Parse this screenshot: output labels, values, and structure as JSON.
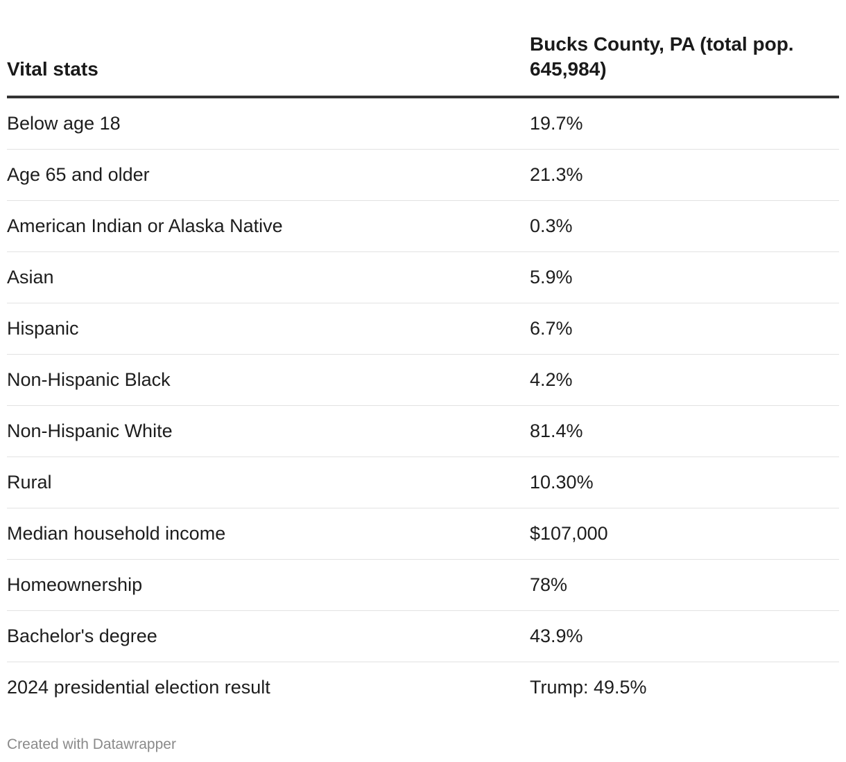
{
  "chart_data": {
    "type": "table",
    "columns": [
      "Vital stats",
      "Bucks County, PA (total pop. 645,984)"
    ],
    "rows": [
      [
        "Below age 18",
        "19.7%"
      ],
      [
        "Age 65 and older",
        "21.3%"
      ],
      [
        "American Indian or Alaska Native",
        "0.3%"
      ],
      [
        "Asian",
        "5.9%"
      ],
      [
        "Hispanic",
        "6.7%"
      ],
      [
        "Non-Hispanic Black",
        "4.2%"
      ],
      [
        "Non-Hispanic White",
        "81.4%"
      ],
      [
        "Rural",
        "10.30%"
      ],
      [
        "Median household income",
        "$107,000"
      ],
      [
        "Homeownership",
        "78%"
      ],
      [
        "Bachelor's degree",
        "43.9%"
      ],
      [
        "2024 presidential election result",
        "Trump: 49.5%"
      ]
    ]
  },
  "footer": {
    "credit": "Created with Datawrapper"
  }
}
